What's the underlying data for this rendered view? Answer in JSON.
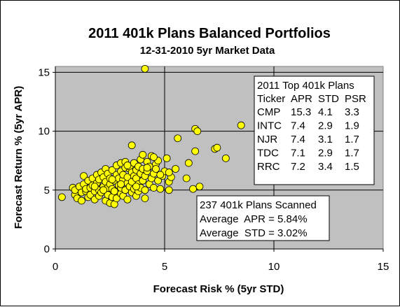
{
  "colors": {
    "plot_bg": "#c0c0c0",
    "marker_fill": "#ffff00",
    "marker_stroke": "#000000",
    "box_bg": "#ffffff"
  },
  "chart_data": {
    "type": "scatter",
    "title": "2011 401k Plans Balanced Portfolios",
    "subtitle": "12-31-2010 5yr Market Data",
    "xlabel": "Forecast Risk % (5yr STD)",
    "ylabel": "Forecast Return % (5yr APR)",
    "xlim": [
      0,
      15
    ],
    "ylim": [
      0,
      15.5
    ],
    "xticks": [
      0,
      5,
      10,
      15
    ],
    "yticks": [
      0,
      5,
      10,
      15
    ],
    "grid": "major gridlines at 5 and 10 on both axes",
    "marker": "circle",
    "points": [
      [
        0.3,
        4.4
      ],
      [
        0.8,
        5.2
      ],
      [
        0.9,
        4.6
      ],
      [
        0.9,
        5.0
      ],
      [
        1.0,
        4.3
      ],
      [
        1.1,
        5.3
      ],
      [
        1.2,
        4.1
      ],
      [
        1.2,
        4.8
      ],
      [
        1.3,
        5.5
      ],
      [
        1.3,
        6.2
      ],
      [
        1.4,
        4.9
      ],
      [
        1.4,
        5.1
      ],
      [
        1.5,
        4.4
      ],
      [
        1.5,
        5.8
      ],
      [
        1.6,
        5.2
      ],
      [
        1.6,
        4.6
      ],
      [
        1.7,
        6.0
      ],
      [
        1.7,
        5.4
      ],
      [
        1.8,
        4.2
      ],
      [
        1.8,
        4.9
      ],
      [
        1.9,
        5.6
      ],
      [
        1.9,
        6.3
      ],
      [
        2.0,
        4.5
      ],
      [
        2.0,
        5.0
      ],
      [
        2.0,
        5.9
      ],
      [
        2.1,
        6.5
      ],
      [
        2.1,
        4.8
      ],
      [
        2.2,
        5.3
      ],
      [
        2.2,
        6.1
      ],
      [
        2.3,
        4.1
      ],
      [
        2.3,
        5.7
      ],
      [
        2.3,
        6.8
      ],
      [
        2.4,
        4.6
      ],
      [
        2.4,
        5.2
      ],
      [
        2.4,
        6.4
      ],
      [
        2.5,
        3.9
      ],
      [
        2.5,
        5.5
      ],
      [
        2.5,
        6.0
      ],
      [
        2.6,
        4.4
      ],
      [
        2.6,
        5.1
      ],
      [
        2.6,
        6.7
      ],
      [
        2.7,
        3.8
      ],
      [
        2.7,
        4.9
      ],
      [
        2.7,
        5.8
      ],
      [
        2.8,
        6.3
      ],
      [
        2.8,
        7.1
      ],
      [
        2.8,
        4.3
      ],
      [
        2.9,
        5.4
      ],
      [
        2.9,
        6.0
      ],
      [
        3.0,
        4.7
      ],
      [
        3.0,
        5.2
      ],
      [
        3.0,
        6.6
      ],
      [
        3.0,
        7.3
      ],
      [
        3.1,
        5.9
      ],
      [
        3.1,
        4.5
      ],
      [
        3.1,
        6.3
      ],
      [
        3.2,
        5.0
      ],
      [
        3.2,
        6.9
      ],
      [
        3.2,
        7.4
      ],
      [
        3.3,
        4.2
      ],
      [
        3.3,
        5.6
      ],
      [
        3.3,
        6.1
      ],
      [
        3.4,
        5.3
      ],
      [
        3.4,
        6.8
      ],
      [
        3.4,
        7.0
      ],
      [
        3.5,
        4.8
      ],
      [
        3.5,
        5.7
      ],
      [
        3.5,
        6.5
      ],
      [
        3.5,
        8.8
      ],
      [
        3.6,
        6.2
      ],
      [
        3.6,
        5.1
      ],
      [
        3.6,
        7.3
      ],
      [
        3.7,
        4.5
      ],
      [
        3.7,
        6.0
      ],
      [
        3.7,
        6.7
      ],
      [
        3.8,
        5.5
      ],
      [
        3.8,
        7.0
      ],
      [
        3.8,
        4.9
      ],
      [
        3.9,
        6.4
      ],
      [
        3.9,
        7.6
      ],
      [
        3.9,
        5.2
      ],
      [
        4.0,
        6.8
      ],
      [
        4.0,
        5.8
      ],
      [
        4.0,
        8.0
      ],
      [
        4.1,
        15.3
      ],
      [
        4.1,
        6.2
      ],
      [
        4.1,
        4.3
      ],
      [
        4.1,
        5.0
      ],
      [
        4.2,
        7.4
      ],
      [
        4.2,
        6.6
      ],
      [
        4.3,
        5.5
      ],
      [
        4.3,
        7.0
      ],
      [
        4.4,
        6.0
      ],
      [
        4.4,
        7.9
      ],
      [
        4.5,
        6.4
      ],
      [
        4.5,
        5.2
      ],
      [
        4.6,
        7.2
      ],
      [
        4.6,
        6.8
      ],
      [
        4.7,
        5.8
      ],
      [
        4.7,
        7.5
      ],
      [
        4.8,
        5.1
      ],
      [
        4.9,
        6.2
      ],
      [
        5.0,
        6.6
      ],
      [
        5.1,
        7.7
      ],
      [
        5.2,
        5.7
      ],
      [
        5.2,
        5.0
      ],
      [
        5.3,
        6.1
      ],
      [
        5.5,
        6.8
      ],
      [
        5.6,
        9.4
      ],
      [
        6.0,
        6.0
      ],
      [
        6.1,
        7.3
      ],
      [
        6.3,
        5.1
      ],
      [
        6.4,
        10.2
      ],
      [
        6.4,
        8.3
      ],
      [
        6.5,
        10.0
      ],
      [
        6.6,
        5.3
      ],
      [
        7.3,
        8.5
      ],
      [
        7.4,
        8.6
      ],
      [
        7.8,
        7.7
      ],
      [
        8.5,
        10.5
      ],
      [
        4.2,
        6.9
      ],
      [
        3.0,
        5.5
      ],
      [
        2.2,
        5.0
      ],
      [
        1.8,
        5.3
      ],
      [
        2.6,
        5.9
      ],
      [
        3.3,
        7.1
      ],
      [
        4.8,
        6.3
      ],
      [
        5.2,
        6.5
      ],
      [
        4.5,
        7.8
      ],
      [
        3.7,
        5.3
      ]
    ],
    "table_box": {
      "title": "2011 Top 401k Plans",
      "headers": [
        "Ticker",
        "APR",
        "STD",
        "PSR"
      ],
      "rows": [
        [
          "CMP",
          "15.3",
          "4.1",
          "3.3"
        ],
        [
          "INTC",
          "7.4",
          "2.9",
          "1.9"
        ],
        [
          "NJR",
          "7.4",
          "3.1",
          "1.7"
        ],
        [
          "TDC",
          "7.1",
          "2.9",
          "1.7"
        ],
        [
          "RRC",
          "7.2",
          "3.4",
          "1.5"
        ]
      ]
    },
    "summary_box": {
      "line1": "237 401k Plans Scanned",
      "line2": "Average  APR = 5.84%",
      "line3": "Average  STD = 3.02%"
    }
  }
}
